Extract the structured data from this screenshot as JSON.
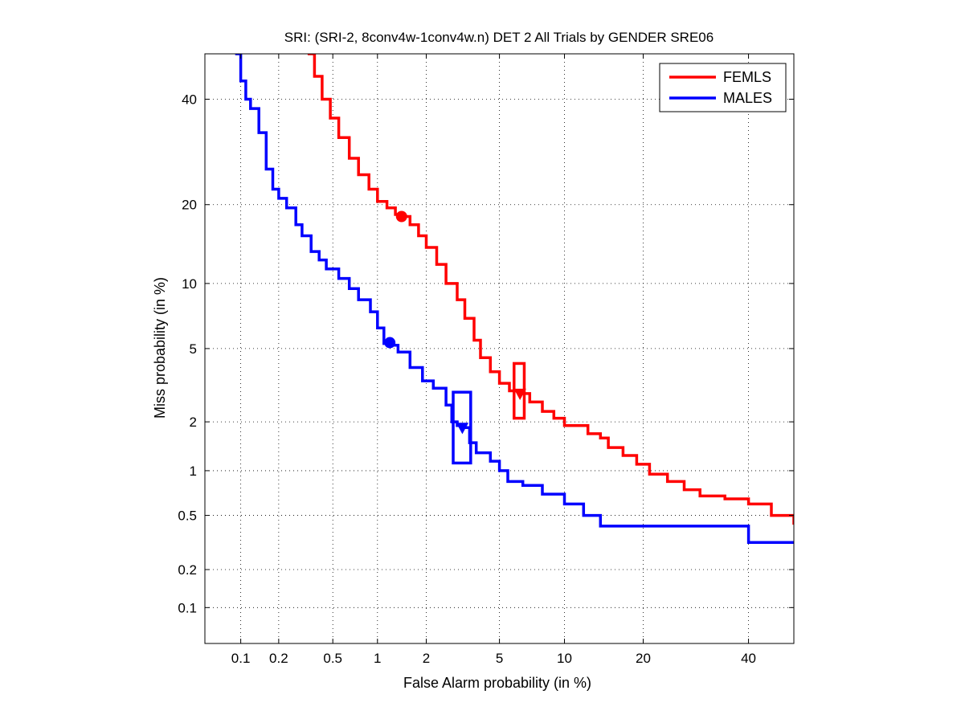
{
  "chart_data": {
    "type": "line",
    "title": "SRI: (SRI-2, 8conv4w-1conv4w.n) DET 2 All Trials by GENDER SRE06",
    "xlabel": "False Alarm probability (in %)",
    "ylabel": "Miss probability (in %)",
    "x_scale": "probit",
    "y_scale": "probit",
    "xlim": [
      0.05,
      50
    ],
    "ylim": [
      0.05,
      50
    ],
    "xticks": [
      0.1,
      0.2,
      0.5,
      1,
      2,
      5,
      10,
      20,
      40
    ],
    "xtick_labels": [
      "0.1",
      "0.2",
      "0.5",
      "1",
      "2",
      "5",
      "10",
      "20",
      "40"
    ],
    "yticks": [
      0.1,
      0.2,
      0.5,
      1,
      2,
      5,
      10,
      20,
      40
    ],
    "ytick_labels": [
      "0.1",
      "0.2",
      "0.5",
      "1",
      "2",
      "5",
      "10",
      "20",
      "40"
    ],
    "grid": true,
    "legend_position": "top-right",
    "series": [
      {
        "name": "FEMLS",
        "color": "#ff0000",
        "x": [
          0.33,
          0.37,
          0.42,
          0.48,
          0.55,
          0.65,
          0.75,
          0.88,
          1.0,
          1.15,
          1.3,
          1.42,
          1.6,
          1.8,
          2.0,
          2.3,
          2.6,
          3.0,
          3.3,
          3.7,
          4.0,
          4.5,
          5.0,
          5.6,
          6.3,
          7.0,
          8.0,
          9.0,
          10.0,
          11.5,
          12.5,
          14.0,
          15.0,
          17.0,
          19.0,
          21.0,
          24.0,
          27.0,
          30.0,
          35.0,
          40.0,
          45.0,
          50.0
        ],
        "y": [
          50,
          45,
          40,
          36,
          32,
          28,
          25,
          22.5,
          20.5,
          19.5,
          18.5,
          18.2,
          17,
          15.5,
          14,
          12,
          10,
          8.5,
          7,
          5.5,
          4.5,
          3.8,
          3.3,
          3.0,
          2.9,
          2.6,
          2.3,
          2.1,
          1.9,
          1.9,
          1.7,
          1.6,
          1.4,
          1.25,
          1.1,
          0.95,
          0.85,
          0.75,
          0.68,
          0.65,
          0.6,
          0.5,
          0.43
        ]
      },
      {
        "name": "MALES",
        "color": "#0000ff",
        "x": [
          0.09,
          0.1,
          0.11,
          0.12,
          0.14,
          0.16,
          0.18,
          0.2,
          0.23,
          0.27,
          0.3,
          0.35,
          0.4,
          0.45,
          0.55,
          0.65,
          0.75,
          0.9,
          1.0,
          1.1,
          1.2,
          1.35,
          1.6,
          1.9,
          2.2,
          2.6,
          2.8,
          3.0,
          3.2,
          3.5,
          3.8,
          4.5,
          5.0,
          5.5,
          6.5,
          8.0,
          10.0,
          12.0,
          14.0,
          20.0,
          30.0,
          40.0,
          50.0
        ],
        "y": [
          50,
          44,
          40,
          38,
          33,
          26,
          22.5,
          21,
          19.5,
          17,
          15.5,
          13.5,
          12.5,
          11.5,
          10.5,
          9.5,
          8.5,
          7.5,
          6.3,
          5.3,
          5.2,
          4.8,
          4.0,
          3.4,
          3.1,
          2.5,
          2.0,
          1.9,
          1.85,
          1.5,
          1.3,
          1.15,
          1.0,
          0.85,
          0.8,
          0.7,
          0.6,
          0.5,
          0.42,
          0.42,
          0.42,
          0.32,
          0.32
        ]
      }
    ],
    "markers": [
      {
        "series": "FEMLS",
        "kind": "circle",
        "x": 1.42,
        "y": 18.2
      },
      {
        "series": "MALES",
        "kind": "circle",
        "x": 1.2,
        "y": 5.35
      },
      {
        "series": "FEMLS",
        "kind": "triangle",
        "x": 6.3,
        "y": 2.9
      },
      {
        "series": "MALES",
        "kind": "triangle",
        "x": 3.2,
        "y": 1.85
      }
    ],
    "confidence_boxes": [
      {
        "series": "FEMLS",
        "x_range": [
          5.9,
          6.6
        ],
        "y_range": [
          2.1,
          4.2
        ]
      },
      {
        "series": "MALES",
        "x_range": [
          2.85,
          3.55
        ],
        "y_range": [
          1.12,
          2.95
        ]
      }
    ]
  }
}
